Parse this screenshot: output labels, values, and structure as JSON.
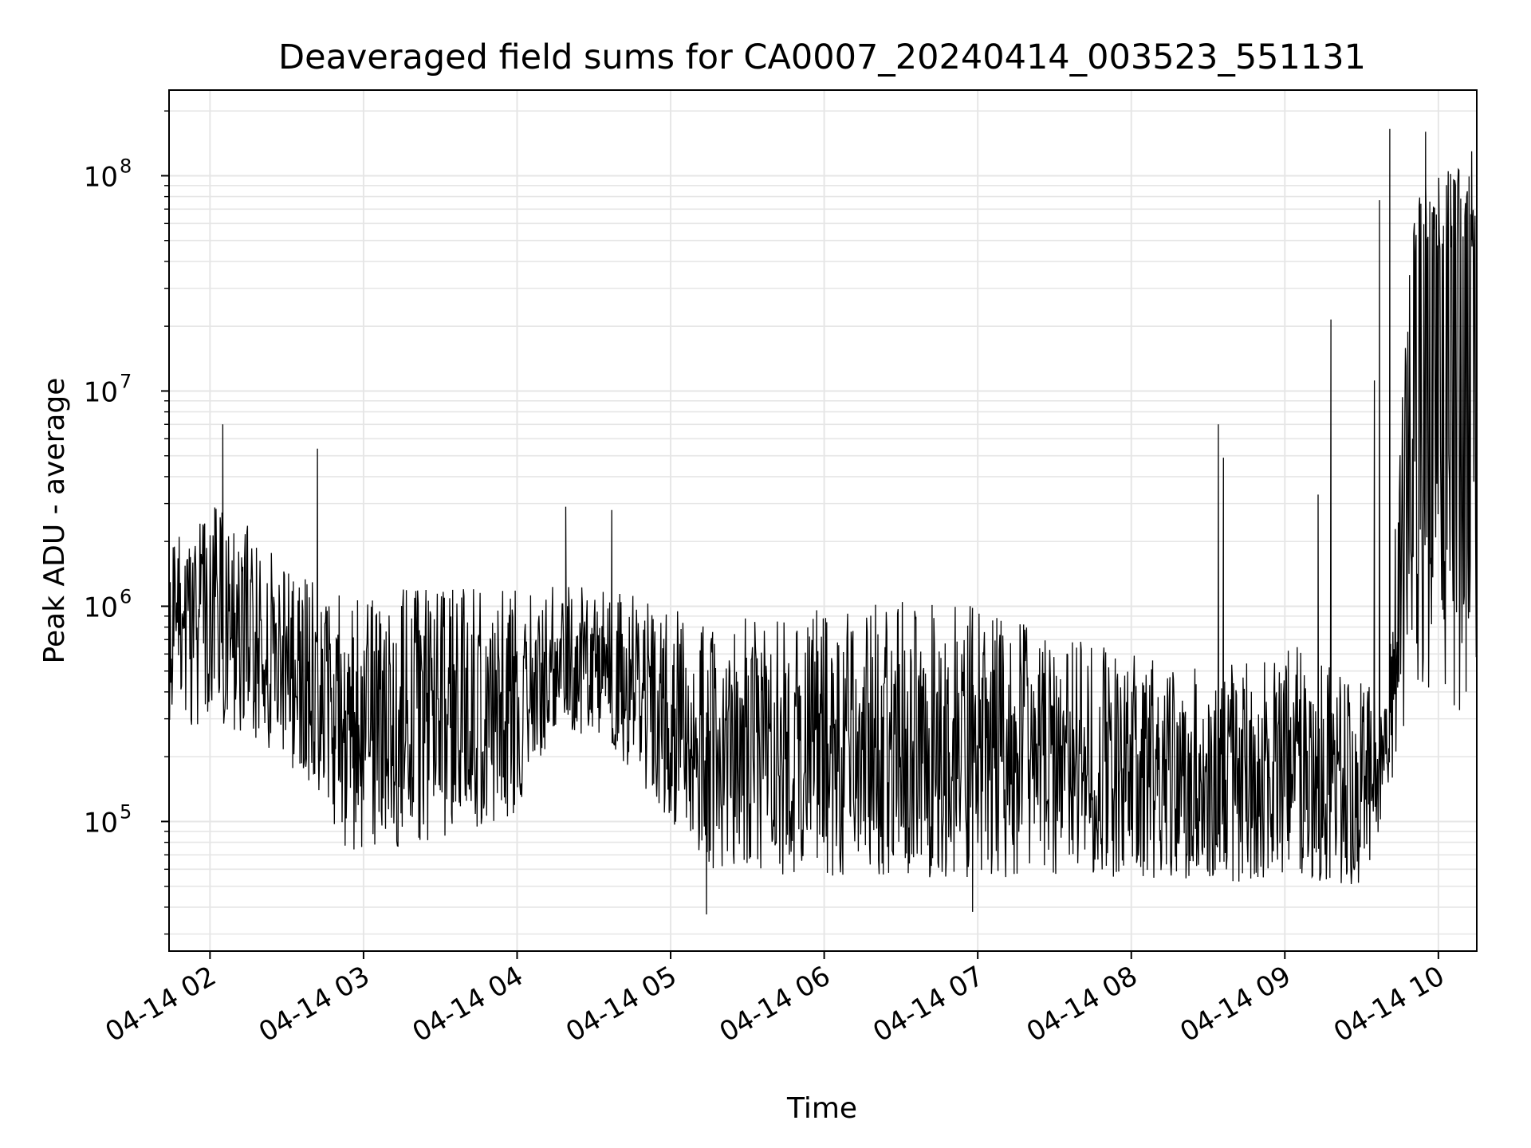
{
  "chart_data": {
    "type": "line",
    "title": "Deaveraged field sums for CA0007_20240414_003523_551131",
    "xlabel": "Time",
    "ylabel": "Peak ADU - average",
    "yscale": "log",
    "grid": "on (major and minor)",
    "x_range": [
      "2024-04-14 01:44",
      "2024-04-14 10:15"
    ],
    "ylim": [
      25000,
      250000000
    ],
    "x_ticks": [
      {
        "value": "2024-04-14 02:00",
        "label": "04-14 02"
      },
      {
        "value": "2024-04-14 03:00",
        "label": "04-14 03"
      },
      {
        "value": "2024-04-14 04:00",
        "label": "04-14 04"
      },
      {
        "value": "2024-04-14 05:00",
        "label": "04-14 05"
      },
      {
        "value": "2024-04-14 06:00",
        "label": "04-14 06"
      },
      {
        "value": "2024-04-14 07:00",
        "label": "04-14 07"
      },
      {
        "value": "2024-04-14 08:00",
        "label": "04-14 08"
      },
      {
        "value": "2024-04-14 09:00",
        "label": "04-14 09"
      },
      {
        "value": "2024-04-14 10:00",
        "label": "04-14 10"
      }
    ],
    "y_ticks": [
      {
        "value": 100000,
        "base": "10",
        "exp": "5"
      },
      {
        "value": 1000000,
        "base": "10",
        "exp": "6"
      },
      {
        "value": 10000000,
        "base": "10",
        "exp": "7"
      },
      {
        "value": 100000000,
        "base": "10",
        "exp": "8"
      }
    ],
    "line_color": "#000000",
    "series_profile": [
      {
        "x": "2024-04-14 01:44",
        "low": 280000,
        "high": 2500000
      },
      {
        "x": "2024-04-14 02:00",
        "low": 280000,
        "high": 3000000
      },
      {
        "x": "2024-04-14 02:15",
        "low": 250000,
        "high": 2500000
      },
      {
        "x": "2024-04-14 02:30",
        "low": 180000,
        "high": 1500000
      },
      {
        "x": "2024-04-14 02:45",
        "low": 130000,
        "high": 1200000
      },
      {
        "x": "2024-04-14 02:52",
        "low": 70000,
        "high": 1200000
      },
      {
        "x": "2024-04-14 03:30",
        "low": 80000,
        "high": 1200000
      },
      {
        "x": "2024-04-14 04:00",
        "low": 110000,
        "high": 1200000
      },
      {
        "x": "2024-04-14 04:15",
        "low": 280000,
        "high": 1300000
      },
      {
        "x": "2024-04-14 04:40",
        "low": 200000,
        "high": 1200000
      },
      {
        "x": "2024-04-14 05:00",
        "low": 100000,
        "high": 1000000
      },
      {
        "x": "2024-04-14 05:15",
        "low": 60000,
        "high": 800000
      },
      {
        "x": "2024-04-14 06:00",
        "low": 55000,
        "high": 1100000
      },
      {
        "x": "2024-04-14 07:00",
        "low": 55000,
        "high": 1000000
      },
      {
        "x": "2024-04-14 08:00",
        "low": 55000,
        "high": 600000
      },
      {
        "x": "2024-04-14 08:30",
        "low": 50000,
        "high": 500000
      },
      {
        "x": "2024-04-14 09:00",
        "low": 55000,
        "high": 700000
      },
      {
        "x": "2024-04-14 09:30",
        "low": 50000,
        "high": 450000
      },
      {
        "x": "2024-04-14 09:40",
        "low": 120000,
        "high": 400000
      },
      {
        "x": "2024-04-14 09:50",
        "low": 400000,
        "high": 100000000
      },
      {
        "x": "2024-04-14 10:15",
        "low": 300000,
        "high": 110000000
      }
    ],
    "notable_points": [
      {
        "x": "2024-04-14 02:05",
        "y": 7000000
      },
      {
        "x": "2024-04-14 02:42",
        "y": 5400000
      },
      {
        "x": "2024-04-14 04:19",
        "y": 2900000
      },
      {
        "x": "2024-04-14 04:37",
        "y": 2800000
      },
      {
        "x": "2024-04-14 05:14",
        "y": 37000
      },
      {
        "x": "2024-04-14 06:58",
        "y": 38000
      },
      {
        "x": "2024-04-14 08:34",
        "y": 7000000
      },
      {
        "x": "2024-04-14 08:36",
        "y": 4900000
      },
      {
        "x": "2024-04-14 09:13",
        "y": 3300000
      },
      {
        "x": "2024-04-14 09:18",
        "y": 21500000
      },
      {
        "x": "2024-04-14 09:35",
        "y": 11200000
      },
      {
        "x": "2024-04-14 09:37",
        "y": 77000000
      },
      {
        "x": "2024-04-14 09:41",
        "y": 165000000
      },
      {
        "x": "2024-04-14 09:55",
        "y": 160000000
      },
      {
        "x": "2024-04-14 10:13",
        "y": 130000000
      }
    ]
  }
}
